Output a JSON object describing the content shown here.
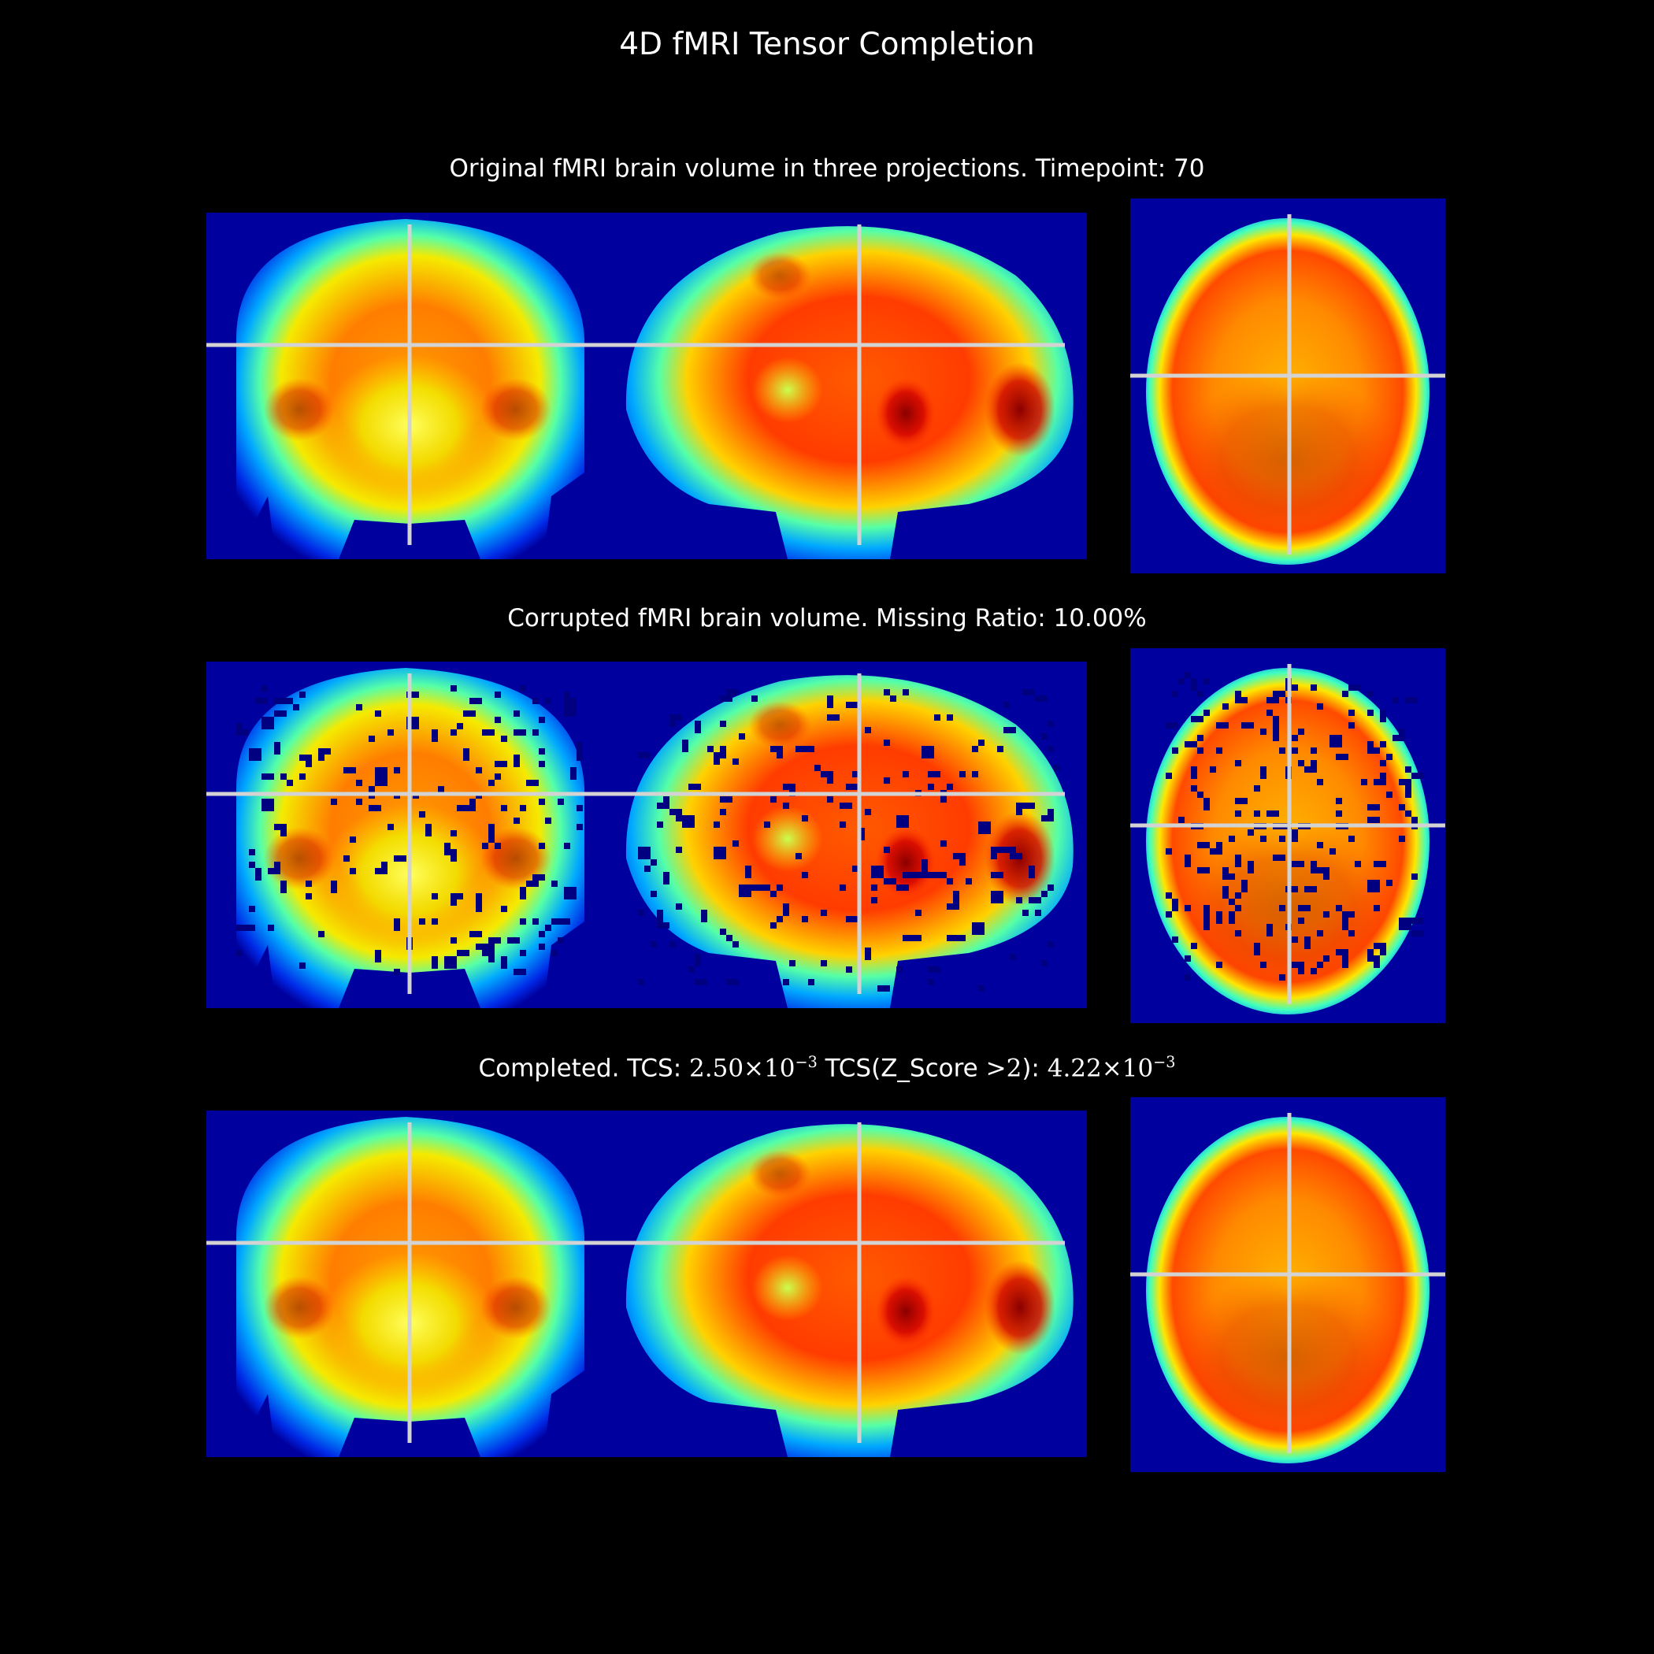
{
  "figure": {
    "title": "4D fMRI Tensor Completion",
    "rows": [
      {
        "id": "original",
        "title": "Original fMRI brain volume in three projections.  Timepoint: 70"
      },
      {
        "id": "corrupted",
        "title": "Corrupted fMRI brain volume.  Missing Ratio: 10.00%"
      },
      {
        "id": "completed",
        "prefix": "Completed.  TCS: ",
        "tcs": "2.50×10",
        "tcs_exp": "−3",
        "mid": " TCS(Z_Score ",
        "gt": ">2",
        "mid2": "): ",
        "tcs_z": "4.22×10",
        "tcs_z_exp": "−3"
      }
    ],
    "projections": [
      "coronal",
      "sagittal",
      "axial"
    ],
    "colormap": "jet",
    "crosshair_color": "#d3d3d3",
    "missing_voxel_color": "#000080"
  }
}
